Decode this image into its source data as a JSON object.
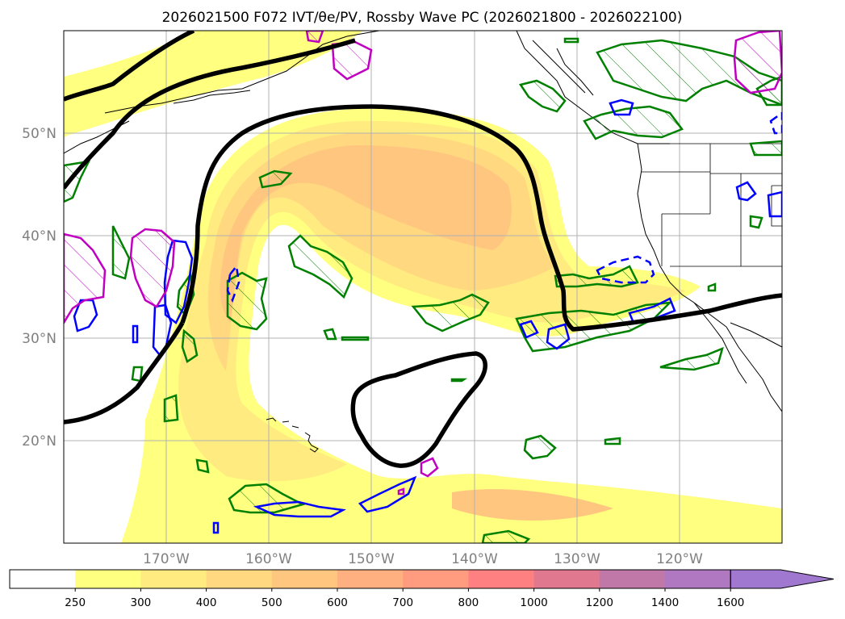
{
  "title": "2026021500 F072 IVT/θe/PV, Rossby Wave PC (2026021800 - 2026022100)",
  "map": {
    "lon_range": [
      -180,
      -110
    ],
    "lat_range": [
      10,
      60
    ],
    "lat_lines": [
      20,
      30,
      40,
      50
    ],
    "lon_lines": [
      -170,
      -160,
      -150,
      -140,
      -130,
      -120
    ],
    "lat_labels": [
      "20°N",
      "30°N",
      "40°N",
      "50°N"
    ],
    "lon_labels": [
      "170°W",
      "160°W",
      "150°W",
      "140°W",
      "130°W",
      "120°W"
    ],
    "contour_colors": {
      "theta_e": "#000000",
      "green_pc": "#008000",
      "blue_pc": "#0000ff",
      "magenta_pc": "#c000c0",
      "coastline": "#000000"
    }
  },
  "colorbar": {
    "levels": [
      "250",
      "300",
      "400",
      "500",
      "600",
      "700",
      "800",
      "1000",
      "1200",
      "1400",
      "1600"
    ],
    "colors": [
      "#ffffff",
      "#ffff80",
      "#ffeb80",
      "#ffd880",
      "#ffc680",
      "#ffb080",
      "#ff9c80",
      "#ff8080",
      "#e07890",
      "#c078a8",
      "#b078c0",
      "#a078d0"
    ],
    "extend": "max"
  },
  "chart_data": {
    "type": "heatmap",
    "title": "2026021500 F072 IVT/θe/PV, Rossby Wave PC (2026021800 - 2026022100)",
    "variable": "IVT",
    "color_levels": [
      250,
      300,
      400,
      500,
      600,
      700,
      800,
      1000,
      1200,
      1400,
      1600
    ],
    "extent": {
      "lon": [
        -180,
        -110
      ],
      "lat": [
        10,
        60
      ]
    }
  }
}
